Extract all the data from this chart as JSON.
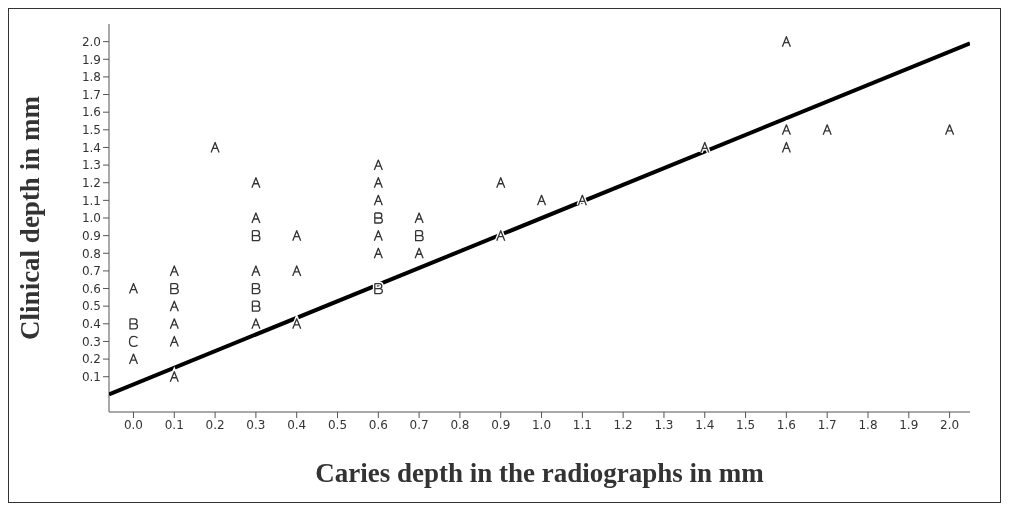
{
  "chart_data": {
    "type": "scatter",
    "xlabel": "Caries depth in the radiographs in mm",
    "ylabel": "Clinical depth in mm",
    "xlim": [
      -0.06,
      2.05
    ],
    "ylim": [
      -0.1,
      2.1
    ],
    "xticks": [
      {
        "value": 0,
        "label": "0.0"
      },
      0.1,
      0.2,
      0.3,
      0.4,
      0.5,
      0.6,
      0.7,
      0.8,
      0.9,
      {
        "value": 1,
        "label": "1.0"
      },
      1.1,
      1.2,
      1.3,
      1.4,
      1.5,
      1.6,
      1.7,
      1.8,
      1.9,
      {
        "value": 2,
        "label": "2.0"
      }
    ],
    "yticks": [
      0.1,
      0.2,
      0.3,
      0.4,
      0.5,
      0.6,
      0.7,
      0.8,
      0.9,
      {
        "value": 1,
        "label": "1.0"
      },
      1.1,
      1.2,
      1.3,
      1.4,
      1.5,
      1.6,
      1.7,
      1.8,
      1.9,
      {
        "value": 2,
        "label": "2.0"
      }
    ],
    "grid": false,
    "legend": false,
    "series": [
      {
        "color": "#333333",
        "x": [
          0,
          0,
          0.1,
          0.1,
          0.1,
          0.1,
          0.1,
          0.2,
          0.3,
          0.3,
          0.3,
          0.3,
          0.4,
          0.4,
          0.4,
          0.6,
          0.6,
          0.6,
          0.6,
          0.6,
          0.7,
          0.7,
          0.9,
          0.9,
          1.0,
          1.1,
          1.4,
          1.6,
          1.6,
          1.6,
          1.7,
          2.0
        ],
        "values": [
          0.6,
          0.2,
          0.7,
          0.5,
          0.4,
          0.3,
          0.1,
          1.4,
          1.2,
          1.0,
          0.7,
          0.4,
          0.9,
          0.7,
          0.4,
          1.3,
          1.2,
          1.1,
          0.9,
          0.8,
          1.0,
          0.8,
          1.2,
          0.9,
          1.1,
          1.1,
          1.4,
          2.0,
          1.5,
          1.4,
          1.5,
          1.5
        ]
      },
      {
        "color": "#333333",
        "x": [
          0,
          0.1,
          0.3,
          0.3,
          0.3,
          0.6,
          0.6,
          0.7
        ],
        "values": [
          0.4,
          0.6,
          0.9,
          0.6,
          0.5,
          1.0,
          0.6,
          0.9
        ]
      },
      {
        "color": "#333333",
        "x": [
          0
        ],
        "values": [
          0.3
        ]
      },
      {
        "type": "line",
        "color": "#000000",
        "x": [
          -0.06,
          2.05
        ],
        "values": [
          0.0,
          1.99
        ]
      }
    ]
  }
}
